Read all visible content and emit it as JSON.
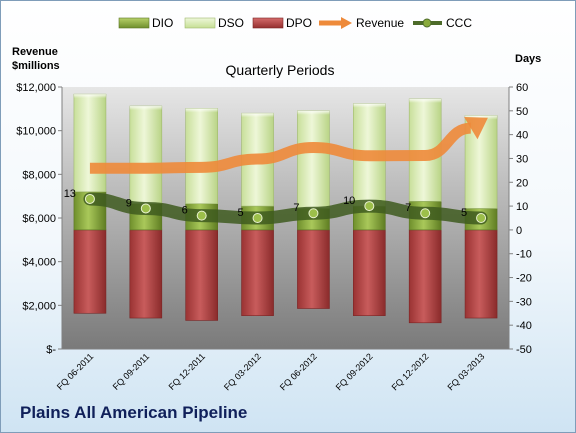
{
  "chart_data": {
    "type": "bar",
    "title": "Quarterly Periods",
    "company": "Plains All American Pipeline",
    "categories": [
      "FQ 06-2011",
      "FQ 09-2011",
      "FQ 12-2011",
      "FQ 03-2012",
      "FQ 06-2012",
      "FQ 09-2012",
      "FQ 12-2012",
      "FQ 03-2013"
    ],
    "left_axis": {
      "label": "Revenue\n$millions",
      "ylim": [
        0,
        12000
      ],
      "ticks": [
        0,
        2000,
        4000,
        6000,
        8000,
        10000,
        12000
      ],
      "tick_labels": [
        "$-",
        "$2,000",
        "$4,000",
        "$6,000",
        "$8,000",
        "$10,000",
        "$12,000"
      ]
    },
    "right_axis": {
      "label": "Days",
      "ylim": [
        -50,
        60
      ],
      "ticks": [
        -50,
        -40,
        -30,
        -20,
        -10,
        0,
        10,
        20,
        30,
        40,
        50,
        60
      ],
      "tick_labels": [
        "-50",
        "-40",
        "-30",
        "-20",
        "-10",
        "0",
        "10",
        "20",
        "30",
        "40",
        "50",
        "60"
      ]
    },
    "series": [
      {
        "name": "DIO",
        "kind": "bar-stacked-up",
        "color": "#8aab3c",
        "values": [
          16,
          11,
          11,
          10,
          9,
          10,
          12,
          9
        ]
      },
      {
        "name": "DSO",
        "kind": "bar-stacked-up",
        "color": "#d6e9b0",
        "values": [
          41,
          41,
          40,
          39,
          41,
          43,
          43,
          39
        ]
      },
      {
        "name": "DPO",
        "kind": "bar-down",
        "color": "#b84a4a",
        "values": [
          35,
          37,
          38,
          36,
          33,
          36,
          39,
          37
        ]
      },
      {
        "name": "Revenue",
        "kind": "arrow-line",
        "color": "#ee8a3a",
        "values": [
          8280,
          8280,
          8320,
          8700,
          9230,
          8850,
          8860,
          10400
        ]
      },
      {
        "name": "CCC",
        "kind": "line-markers",
        "color": "#4d6b2a",
        "values": [
          13,
          9,
          6,
          5,
          7,
          10,
          7,
          5
        ],
        "data_labels": [
          "13",
          "9",
          "6",
          "5",
          "7",
          "10",
          "7",
          "5"
        ]
      }
    ],
    "grid": false,
    "legend_position": "top"
  },
  "colors": {
    "plot_top": "#e6e6e6",
    "plot_bottom": "#7a7a7a",
    "title_company": "#10205a"
  }
}
